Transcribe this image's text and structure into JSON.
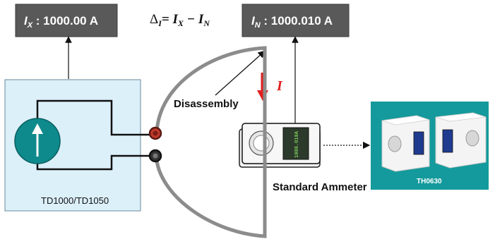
{
  "readouts": {
    "ix": {
      "symbol": "I",
      "subscript": "X",
      "value": " : 1000.00 A"
    },
    "in": {
      "symbol": "I",
      "subscript": "N",
      "value": " : 1000.010 A"
    }
  },
  "formula": {
    "delta": "Δ",
    "delta_sub": "I",
    "rhs": "= I",
    "rhs_sub1": "X",
    "minus": " − I",
    "rhs_sub2": "N"
  },
  "labels": {
    "disassembly": "Disassembly",
    "current": "I",
    "source": "TD1000/TD1050",
    "standard_ammeter": "Standard Ammeter",
    "device_model": "TH0630",
    "ammeter_display": "1000.010A"
  },
  "colors": {
    "readout_box": "#595959",
    "source_panel": "#dcf0fa",
    "source_circle": "#0e8a8c",
    "device_panel": "#149a9c",
    "current_arrow": "#e02020",
    "terminal_red": "#c0392b",
    "terminal_black": "#333333"
  }
}
